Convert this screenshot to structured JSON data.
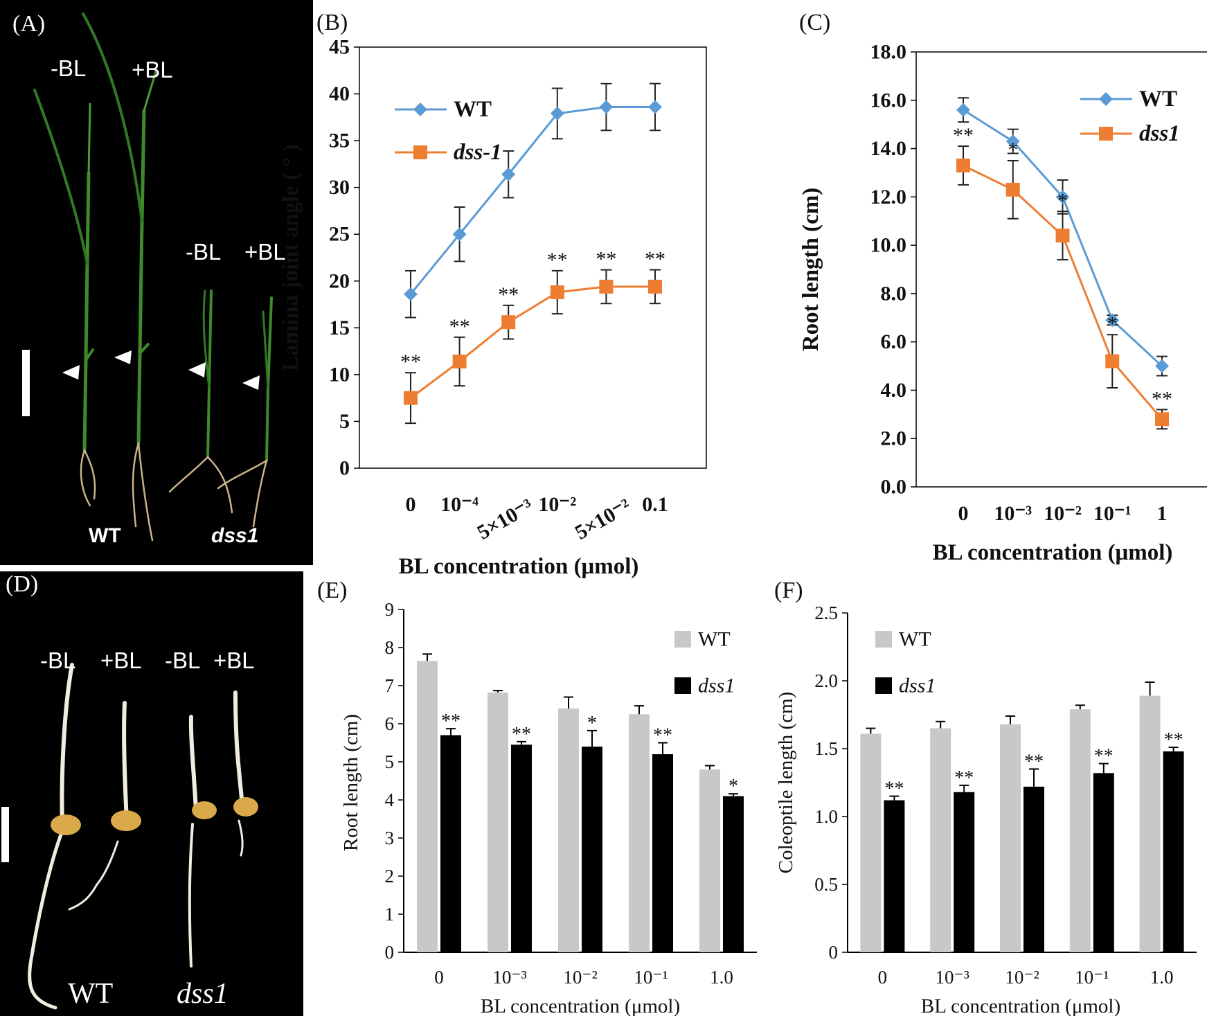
{
  "panels": {
    "A": {
      "label": "(A)",
      "texts": {
        "wt_minus": "-BL",
        "wt_plus": "+BL",
        "mut_minus": "-BL",
        "mut_plus": "+BL",
        "wt": "WT",
        "mut": "dss1"
      }
    },
    "D": {
      "label": "(D)",
      "texts": {
        "wt_minus": "-BL",
        "wt_plus": "+BL",
        "mut_minus": "-BL",
        "mut_plus": "+BL",
        "wt": "WT",
        "mut": "dss1"
      }
    }
  },
  "chart_data": [
    {
      "panel": "(B)",
      "type": "line",
      "xlabel": "BL concentration (μmol)",
      "ylabel": "Lamina joint angle ( ° )",
      "ylim": [
        0,
        45
      ],
      "yticks": [
        "0",
        "5",
        "10",
        "15",
        "20",
        "25",
        "30",
        "35",
        "40",
        "45"
      ],
      "categories": [
        "0",
        "10⁻⁴",
        "5×10⁻³",
        "10⁻²",
        "5×10⁻²",
        "0.1"
      ],
      "series": [
        {
          "name": "WT",
          "color": "#5B9BD5",
          "marker": "diamond",
          "italic": false,
          "values": [
            18.6,
            25.0,
            31.4,
            37.9,
            38.6,
            38.6
          ],
          "errors": [
            2.5,
            2.9,
            2.5,
            2.7,
            2.5,
            2.5
          ],
          "sig": [
            "",
            "",
            "",
            "",
            "",
            ""
          ]
        },
        {
          "name": "dss-1",
          "color": "#ED7D31",
          "marker": "square",
          "italic": true,
          "values": [
            7.5,
            11.4,
            15.6,
            18.8,
            19.4,
            19.4
          ],
          "errors": [
            2.7,
            2.6,
            1.8,
            2.3,
            1.8,
            1.8
          ],
          "sig": [
            "**",
            "**",
            "**",
            "**",
            "**",
            "**"
          ]
        }
      ]
    },
    {
      "panel": "(C)",
      "type": "line",
      "xlabel": "BL concentration (μmol)",
      "ylabel": "Root length (cm)",
      "ylim": [
        0,
        18
      ],
      "yticks": [
        "0.0",
        "2.0",
        "4.0",
        "6.0",
        "8.0",
        "10.0",
        "12.0",
        "14.0",
        "16.0",
        "18.0"
      ],
      "categories": [
        "0",
        "10⁻³",
        "10⁻²",
        "10⁻¹",
        "1"
      ],
      "series": [
        {
          "name": "WT",
          "color": "#5B9BD5",
          "marker": "diamond",
          "italic": false,
          "values": [
            15.6,
            14.3,
            12.0,
            6.9,
            5.0
          ],
          "errors": [
            0.5,
            0.5,
            0.7,
            0.2,
            0.4
          ],
          "sig": [
            "",
            "",
            "",
            "",
            ""
          ]
        },
        {
          "name": "dss1",
          "color": "#ED7D31",
          "marker": "square",
          "italic": true,
          "values": [
            13.3,
            12.3,
            10.4,
            5.2,
            2.8
          ],
          "errors": [
            0.8,
            1.2,
            1.0,
            1.1,
            0.4
          ],
          "sig": [
            "**",
            "*",
            "*",
            "*",
            "**"
          ]
        }
      ]
    },
    {
      "panel": "(E)",
      "type": "bar",
      "xlabel": "BL concentration (μmol)",
      "ylabel": "Root length (cm)",
      "ylim": [
        0,
        9
      ],
      "yticks": [
        "0",
        "1",
        "2",
        "3",
        "4",
        "5",
        "6",
        "7",
        "8",
        "9"
      ],
      "categories": [
        "0",
        "10⁻³",
        "10⁻²",
        "10⁻¹",
        "1.0"
      ],
      "series": [
        {
          "name": "WT",
          "color": "#C8C8C8",
          "italic": false,
          "values": [
            7.65,
            6.82,
            6.4,
            6.25,
            4.8
          ],
          "errors": [
            0.18,
            0.05,
            0.3,
            0.22,
            0.1
          ],
          "sig": [
            "",
            "",
            "",
            "",
            ""
          ]
        },
        {
          "name": "dss1",
          "color": "#000000",
          "italic": true,
          "values": [
            5.7,
            5.45,
            5.4,
            5.2,
            4.1
          ],
          "errors": [
            0.17,
            0.08,
            0.42,
            0.3,
            0.06
          ],
          "sig": [
            "**",
            "**",
            "*",
            "**",
            "*"
          ]
        }
      ]
    },
    {
      "panel": "(F)",
      "type": "bar",
      "xlabel": "BL concentration (μmol)",
      "ylabel": "Coleoptile length (cm)",
      "ylim": [
        0,
        2.5
      ],
      "yticks": [
        "0",
        "0.5",
        "1.0",
        "1.5",
        "2.0",
        "2.5"
      ],
      "categories": [
        "0",
        "10⁻³",
        "10⁻²",
        "10⁻¹",
        "1.0"
      ],
      "series": [
        {
          "name": "WT",
          "color": "#C8C8C8",
          "italic": false,
          "values": [
            1.61,
            1.65,
            1.68,
            1.79,
            1.89
          ],
          "errors": [
            0.04,
            0.05,
            0.06,
            0.03,
            0.1
          ],
          "sig": [
            "",
            "",
            "",
            "",
            ""
          ]
        },
        {
          "name": "dss1",
          "color": "#000000",
          "italic": true,
          "values": [
            1.12,
            1.18,
            1.22,
            1.32,
            1.48
          ],
          "errors": [
            0.03,
            0.05,
            0.13,
            0.07,
            0.03
          ],
          "sig": [
            "**",
            "**",
            "**",
            "**",
            "**"
          ]
        }
      ]
    }
  ]
}
